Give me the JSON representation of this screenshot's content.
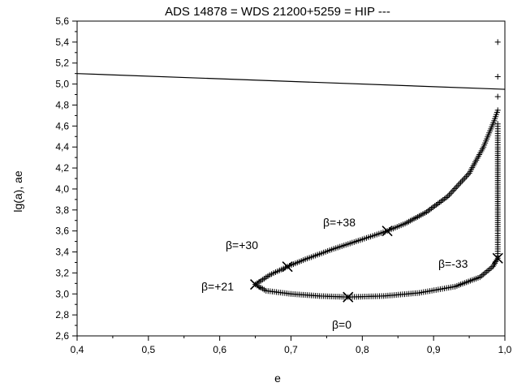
{
  "chart_data": {
    "type": "scatter",
    "title": "ADS 14878 = WDS 21200+5259 = HIP ---",
    "xlabel": "e",
    "ylabel": "lg(a), ae",
    "xlim": [
      0.4,
      1.0
    ],
    "ylim": [
      2.6,
      5.6
    ],
    "xticks": [
      "0,4",
      "0,5",
      "0,6",
      "0,7",
      "0,8",
      "0,9",
      "1,0"
    ],
    "yticks": [
      "2,6",
      "2,8",
      "3,0",
      "3,2",
      "3,4",
      "3,6",
      "3,8",
      "4,0",
      "4,2",
      "4,4",
      "4,6",
      "4,8",
      "5,0",
      "5,2",
      "5,4",
      "5,6"
    ],
    "grid": false,
    "line": {
      "points": [
        [
          0.4,
          5.1
        ],
        [
          1.0,
          4.95
        ]
      ],
      "color": "#000000"
    },
    "curve": {
      "marker": "+",
      "color": "#000000",
      "anchors": [
        [
          0.99,
          5.4
        ],
        [
          0.99,
          5.07
        ],
        [
          0.99,
          4.88
        ],
        [
          0.99,
          4.75
        ],
        [
          0.985,
          4.65
        ],
        [
          0.97,
          4.4
        ],
        [
          0.95,
          4.15
        ],
        [
          0.92,
          3.93
        ],
        [
          0.89,
          3.78
        ],
        [
          0.86,
          3.67
        ],
        [
          0.835,
          3.6
        ],
        [
          0.8,
          3.52
        ],
        [
          0.76,
          3.43
        ],
        [
          0.72,
          3.33
        ],
        [
          0.695,
          3.26
        ],
        [
          0.67,
          3.18
        ],
        [
          0.65,
          3.09
        ],
        [
          0.665,
          3.03
        ],
        [
          0.7,
          3.0
        ],
        [
          0.74,
          2.98
        ],
        [
          0.78,
          2.97
        ],
        [
          0.83,
          2.98
        ],
        [
          0.88,
          3.01
        ],
        [
          0.93,
          3.07
        ],
        [
          0.965,
          3.16
        ],
        [
          0.983,
          3.26
        ],
        [
          0.99,
          3.34
        ],
        [
          0.99,
          3.45
        ],
        [
          0.99,
          3.6
        ],
        [
          0.99,
          3.8
        ],
        [
          0.99,
          4.0
        ],
        [
          0.99,
          4.2
        ],
        [
          0.99,
          4.4
        ],
        [
          0.99,
          4.55
        ],
        [
          0.99,
          4.62
        ]
      ]
    },
    "highlight_points": [
      {
        "x": 0.835,
        "y": 3.6,
        "label": "β=+38"
      },
      {
        "x": 0.695,
        "y": 3.26,
        "label": "β=+30"
      },
      {
        "x": 0.65,
        "y": 3.09,
        "label": "β=+21"
      },
      {
        "x": 0.78,
        "y": 2.97,
        "label": "β=0"
      },
      {
        "x": 0.99,
        "y": 3.34,
        "label": "β=-33"
      }
    ]
  }
}
